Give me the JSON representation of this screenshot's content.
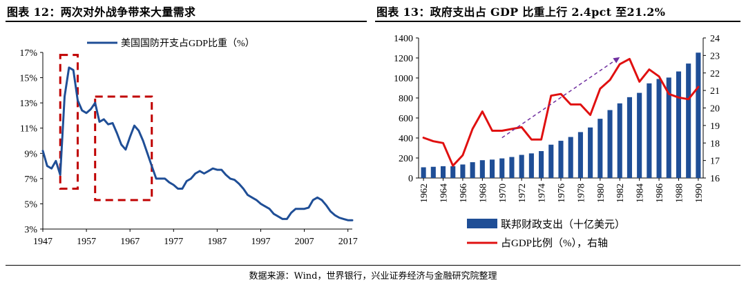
{
  "left_chart": {
    "title": "图表 12：两次对外战争带来大量需求",
    "legend_label": "美国国防开支占GDP比重（%）",
    "line_color": "#1f4e96",
    "box_color": "#c00000"
  },
  "right_chart": {
    "title": "图表 13：政府支出占 GDP 比重上行 2.4pct 至21.2%",
    "bar_legend": "联邦财政支出（十亿美元）",
    "line_legend": "占GDP比例（%），右轴",
    "bar_color": "#1f4e96",
    "line_color": "#e01010",
    "arrow_color": "#7030a0"
  },
  "footer": {
    "source": "数据来源：Wind，世界银行，兴业证券经济与金融研究院整理"
  },
  "chart_data": [
    {
      "type": "line",
      "title": "图表 12：两次对外战争带来大量需求",
      "xlim": [
        1947,
        2018
      ],
      "ylim": [
        3,
        17
      ],
      "y_ticks": [
        "3%",
        "5%",
        "7%",
        "9%",
        "11%",
        "13%",
        "15%",
        "17%"
      ],
      "x_ticks": [
        1947,
        1957,
        1967,
        1977,
        1987,
        1997,
        2007,
        2017
      ],
      "series": [
        {
          "name": "美国国防开支占GDP比重（%）",
          "x": [
            1947,
            1948,
            1949,
            1950,
            1951,
            1952,
            1953,
            1954,
            1955,
            1956,
            1957,
            1958,
            1959,
            1960,
            1961,
            1962,
            1963,
            1964,
            1965,
            1966,
            1967,
            1968,
            1969,
            1970,
            1971,
            1972,
            1973,
            1974,
            1975,
            1976,
            1977,
            1978,
            1979,
            1980,
            1981,
            1982,
            1983,
            1984,
            1985,
            1986,
            1987,
            1988,
            1989,
            1990,
            1991,
            1992,
            1993,
            1994,
            1995,
            1996,
            1997,
            1998,
            1999,
            2000,
            2001,
            2002,
            2003,
            2004,
            2005,
            2006,
            2007,
            2008,
            2009,
            2010,
            2011,
            2012,
            2013,
            2014,
            2015,
            2016,
            2017,
            2018
          ],
          "values": [
            9.2,
            8.0,
            7.8,
            8.4,
            7.3,
            13.5,
            15.8,
            15.6,
            13.2,
            12.4,
            12.2,
            12.5,
            13.0,
            11.5,
            11.7,
            11.3,
            11.4,
            10.6,
            9.7,
            9.3,
            10.3,
            11.2,
            10.8,
            10.0,
            9.0,
            8.0,
            7.0,
            7.0,
            7.0,
            6.7,
            6.5,
            6.2,
            6.2,
            6.8,
            7.0,
            7.4,
            7.6,
            7.4,
            7.6,
            7.8,
            7.7,
            7.7,
            7.3,
            7.0,
            6.9,
            6.6,
            6.2,
            5.7,
            5.5,
            5.3,
            5.0,
            4.8,
            4.6,
            4.2,
            4.0,
            3.8,
            3.8,
            4.3,
            4.6,
            4.6,
            4.6,
            4.7,
            5.3,
            5.5,
            5.3,
            4.9,
            4.4,
            4.1,
            3.9,
            3.8,
            3.7,
            3.7
          ]
        }
      ],
      "annotations": [
        {
          "type": "box",
          "x": [
            1951,
            1955
          ],
          "y": [
            6.2,
            16.8
          ]
        },
        {
          "type": "box",
          "x": [
            1959,
            1972
          ],
          "y": [
            5.3,
            13.5
          ]
        }
      ]
    },
    {
      "type": "bar",
      "title": "图表 13：政府支出占 GDP 比重上行 2.4pct 至21.2%",
      "categories": [
        1962,
        1963,
        1964,
        1965,
        1966,
        1967,
        1968,
        1969,
        1970,
        1971,
        1972,
        1973,
        1974,
        1975,
        1976,
        1977,
        1978,
        1979,
        1980,
        1981,
        1982,
        1983,
        1984,
        1985,
        1986,
        1987,
        1988,
        1989,
        1990
      ],
      "x_tick_labels": [
        "1962",
        "1964",
        "1966",
        "1968",
        "1970",
        "1972",
        "1974",
        "1976",
        "1978",
        "1980",
        "1982",
        "1984",
        "1986",
        "1988",
        "1990"
      ],
      "ylim": [
        0,
        1400
      ],
      "y_ticks": [
        0,
        200,
        400,
        600,
        800,
        1000,
        1200,
        1400
      ],
      "y2lim": [
        16,
        24
      ],
      "y2_ticks": [
        16,
        17,
        18,
        19,
        20,
        21,
        22,
        23,
        24
      ],
      "legend_position": "bottom",
      "series": [
        {
          "name": "联邦财政支出（十亿美元）",
          "type": "bar",
          "axis": "left",
          "values": [
            107,
            112,
            118,
            118,
            135,
            158,
            178,
            184,
            196,
            210,
            231,
            246,
            269,
            333,
            372,
            410,
            459,
            505,
            592,
            679,
            746,
            808,
            851,
            946,
            990,
            1004,
            1065,
            1144,
            1253
          ]
        },
        {
          "name": "占GDP比例（%），右轴",
          "type": "line",
          "axis": "right",
          "values": [
            18.3,
            18.1,
            18.0,
            16.7,
            17.3,
            18.8,
            19.8,
            18.7,
            18.7,
            18.8,
            18.9,
            18.2,
            18.2,
            20.7,
            20.8,
            20.2,
            20.2,
            19.6,
            21.1,
            21.6,
            22.5,
            22.8,
            21.5,
            22.2,
            21.8,
            20.8,
            20.6,
            20.5,
            21.2
          ]
        }
      ],
      "annotations": [
        {
          "type": "arrow",
          "from": {
            "x": 1970,
            "y2": 18.3
          },
          "to": {
            "x": 1982,
            "y2": 22.9
          }
        }
      ]
    }
  ]
}
